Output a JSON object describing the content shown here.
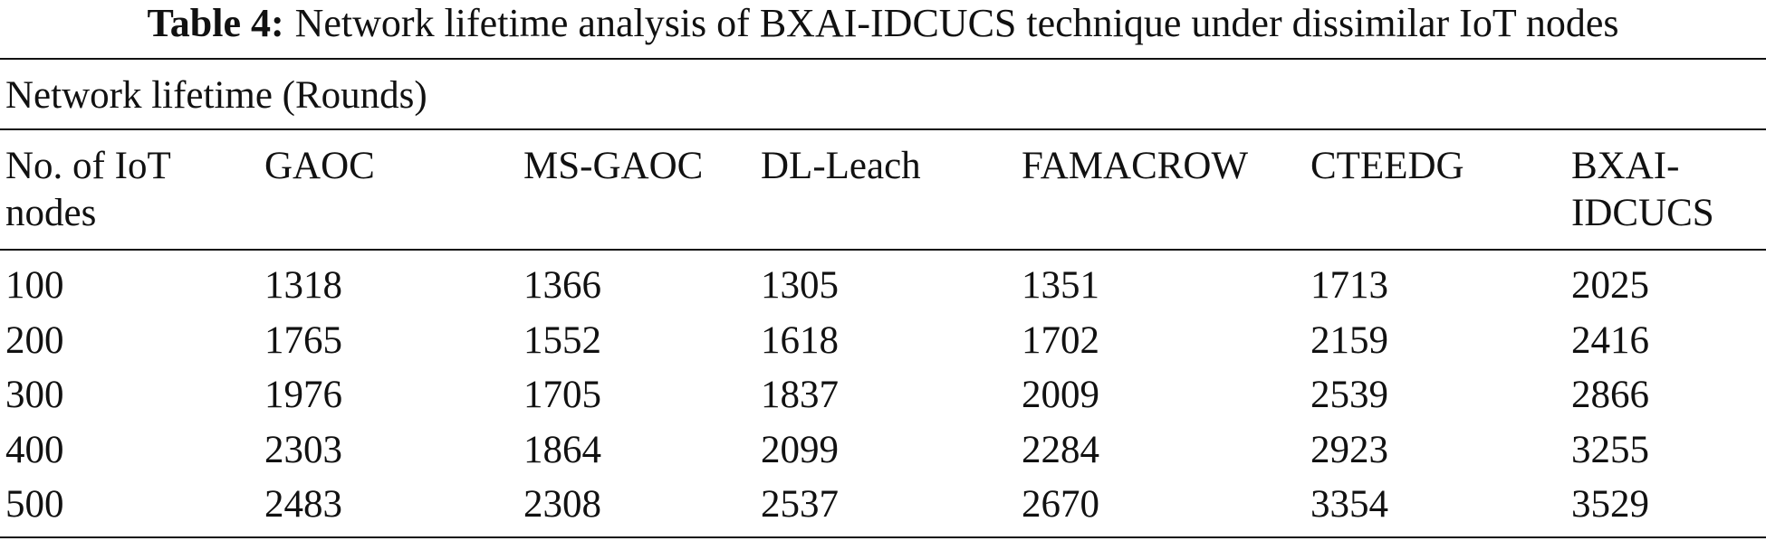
{
  "caption": {
    "label": "Table 4:",
    "text": "Network lifetime analysis of BXAI-IDCUCS technique under dissimilar IoT nodes"
  },
  "table": {
    "group_header": "Network lifetime (Rounds)",
    "columns": [
      "No. of IoT nodes",
      "GAOC",
      "MS-GAOC",
      "DL-Leach",
      "FAMACROW",
      "CTEEDG",
      "BXAI-IDCUCS"
    ],
    "rows": [
      [
        100,
        1318,
        1366,
        1305,
        1351,
        1713,
        2025
      ],
      [
        200,
        1765,
        1552,
        1618,
        1702,
        2159,
        2416
      ],
      [
        300,
        1976,
        1705,
        1837,
        2009,
        2539,
        2866
      ],
      [
        400,
        2303,
        1864,
        2099,
        2284,
        2923,
        3255
      ],
      [
        500,
        2483,
        2308,
        2537,
        2670,
        3354,
        3529
      ]
    ]
  }
}
